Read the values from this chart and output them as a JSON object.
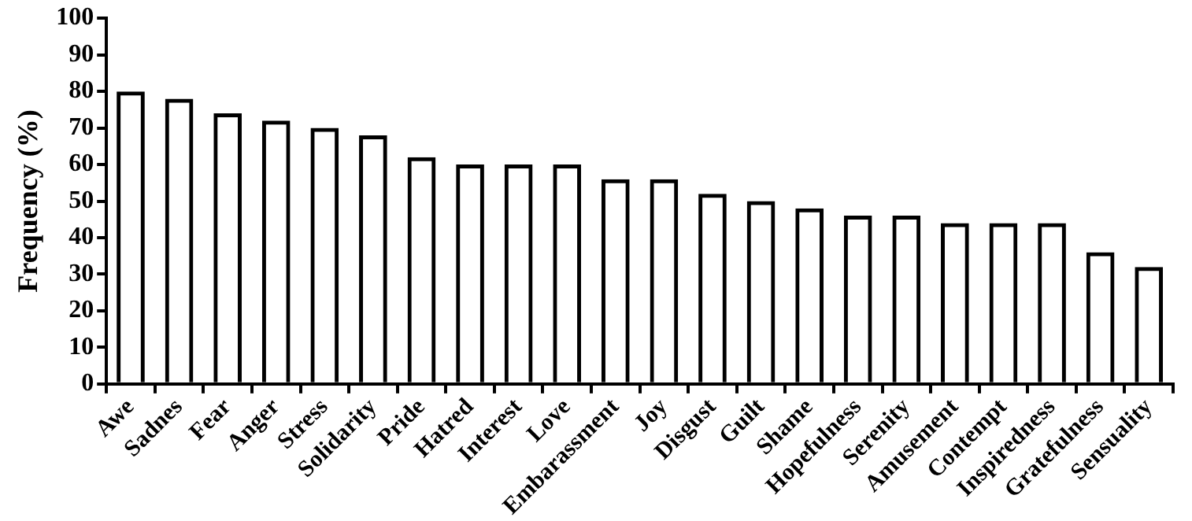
{
  "chart_data": {
    "type": "bar",
    "ylabel": "Frequency (%)",
    "categories": [
      "Awe",
      "Sadnes",
      "Fear",
      "Anger",
      "Stress",
      "Solidarity",
      "Pride",
      "Hatred",
      "Interest",
      "Love",
      "Embarassment",
      "Joy",
      "Disgust",
      "Guilt",
      "Shame",
      "Hopefulness",
      "Serenity",
      "Amusement",
      "Contempt",
      "Inspiredness",
      "Gratefulness",
      "Sensuality"
    ],
    "values": [
      80,
      78,
      74,
      72,
      70,
      68,
      62,
      60,
      60,
      60,
      56,
      56,
      52,
      50,
      48,
      46,
      46,
      44,
      44,
      44,
      36,
      32
    ],
    "color": "#000000",
    "ylim": [
      0,
      100
    ],
    "yticks": [
      0,
      10,
      20,
      30,
      40,
      50,
      60,
      70,
      80,
      90,
      100
    ]
  }
}
